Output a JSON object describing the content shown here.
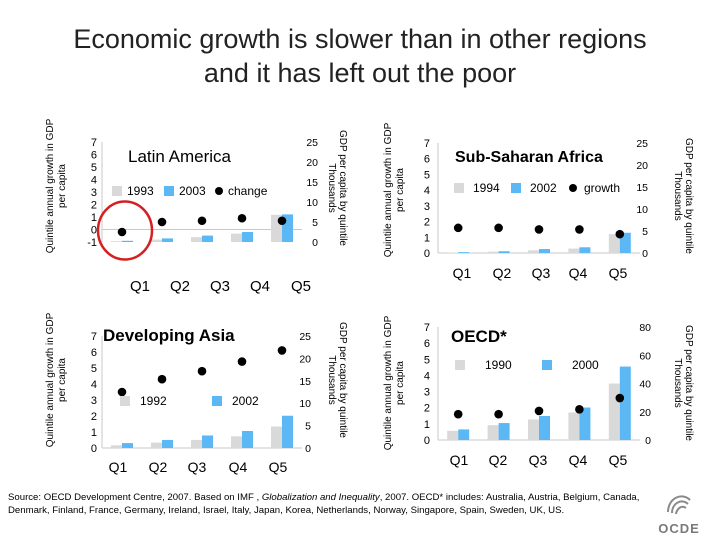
{
  "title": {
    "line1": "Economic growth is slower than in other regions",
    "line2": "and it has left out the poor"
  },
  "colors": {
    "series_early": "#d9d9d9",
    "series_late": "#5bb8f5",
    "growth_marker": "#000000",
    "highlight_circle": "#d42020"
  },
  "chart_data": [
    {
      "type": "bar",
      "title": "Latin America",
      "categories": [
        "Q1",
        "Q2",
        "Q3",
        "Q4",
        "Q5"
      ],
      "series": [
        {
          "name": "1993",
          "values": [
            0.2,
            0.6,
            1.2,
            2.1,
            6.8
          ]
        },
        {
          "name": "2003",
          "values": [
            0.3,
            0.9,
            1.6,
            2.5,
            6.9
          ]
        }
      ],
      "growth": {
        "name": "change",
        "values": [
          -0.2,
          0.6,
          0.7,
          0.9,
          0.7
        ]
      },
      "ylabel_left": "Quintile annual growth in GDP per capita",
      "ylabel_right": "GDP per capita by quintile Thousands",
      "left_ticks": [
        "7",
        "6",
        "5",
        "4",
        "3",
        "2",
        "1",
        "0",
        "-1"
      ],
      "right_ticks": [
        "25",
        "20",
        "15",
        "10",
        "5",
        "0"
      ],
      "ylim_left": [
        -1,
        7
      ],
      "ylim_right": [
        0,
        25
      ],
      "highlight_quintile": "Q1"
    },
    {
      "type": "bar",
      "title": "Sub-Saharan Africa",
      "categories": [
        "Q1",
        "Q2",
        "Q3",
        "Q4",
        "Q5"
      ],
      "series": [
        {
          "name": "1994",
          "values": [
            0.1,
            0.3,
            0.6,
            1.0,
            4.3
          ]
        },
        {
          "name": "2002",
          "values": [
            0.2,
            0.4,
            0.9,
            1.3,
            4.6
          ]
        }
      ],
      "growth": {
        "name": "growth",
        "values": [
          1.6,
          1.6,
          1.5,
          1.5,
          1.2
        ]
      },
      "ylabel_left": "Quintile annual growth in GDP per capita",
      "ylabel_right": "GDP per capita by quintile Thousands",
      "left_ticks": [
        "7",
        "6",
        "5",
        "4",
        "3",
        "2",
        "1",
        "0"
      ],
      "right_ticks": [
        "25",
        "20",
        "15",
        "10",
        "5",
        "0"
      ],
      "ylim_left": [
        0,
        7
      ],
      "ylim_right": [
        0,
        25
      ]
    },
    {
      "type": "bar",
      "title": "Developing Asia",
      "categories": [
        "Q1",
        "Q2",
        "Q3",
        "Q4",
        "Q5"
      ],
      "series": [
        {
          "name": "1992",
          "values": [
            0.6,
            1.2,
            1.8,
            2.6,
            4.8
          ]
        },
        {
          "name": "2002",
          "values": [
            1.1,
            1.8,
            2.8,
            3.8,
            7.2
          ]
        }
      ],
      "growth": {
        "name": "growth",
        "values": [
          3.5,
          4.3,
          4.8,
          5.4,
          6.1
        ]
      },
      "ylabel_left": "Quintile annual growth in GDP per capita",
      "ylabel_right": "GDP per capita by quintile Thousands",
      "left_ticks": [
        "7",
        "6",
        "5",
        "4",
        "3",
        "2",
        "1",
        "0"
      ],
      "right_ticks": [
        "25",
        "20",
        "15",
        "10",
        "5",
        "0"
      ],
      "ylim_left": [
        0,
        7
      ],
      "ylim_right": [
        0,
        25
      ]
    },
    {
      "type": "bar",
      "title": "OECD*",
      "categories": [
        "Q1",
        "Q2",
        "Q3",
        "Q4",
        "Q5"
      ],
      "series": [
        {
          "name": "1990",
          "values": [
            6.5,
            10.5,
            14.5,
            19.5,
            40
          ]
        },
        {
          "name": "2000",
          "values": [
            7.5,
            12.0,
            17.0,
            23.0,
            52
          ]
        }
      ],
      "growth": {
        "name": "growth",
        "values": [
          1.6,
          1.6,
          1.8,
          1.9,
          2.6
        ]
      },
      "ylabel_left": "Quintile annual growth in GDP per capita",
      "ylabel_right": "GDP per capita by quintile Thousands",
      "left_ticks": [
        "7",
        "6",
        "5",
        "4",
        "3",
        "2",
        "1",
        "0"
      ],
      "right_ticks": [
        "80",
        "60",
        "40",
        "20",
        "0"
      ],
      "ylim_left": [
        0,
        7
      ],
      "ylim_right": [
        0,
        80
      ]
    }
  ],
  "source": {
    "prefix": "Source: OECD Development Centre, 2007. Based on IMF , ",
    "italic": "Globalization and Inequality",
    "suffix": ", 2007. OECD* includes: Australia, Austria, Belgium, Canada, Denmark, Finland, France, Germany, Ireland, Israel, Italy, Japan, Korea, Netherlands, Norway, Singapore, Spain, Sweden, UK, US."
  },
  "logo": {
    "text": "OCDE"
  }
}
